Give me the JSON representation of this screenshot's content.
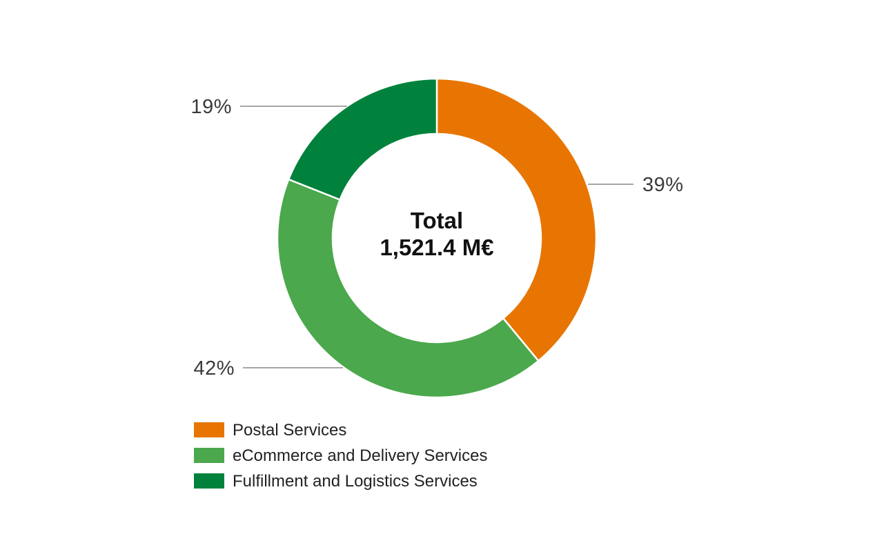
{
  "chart_data": {
    "type": "pie",
    "variant": "donut",
    "center_label": {
      "line1": "Total",
      "line2": "1,521.4 M€"
    },
    "slices": [
      {
        "name": "Postal Services",
        "value": 39,
        "label": "39%",
        "color": "#E87502"
      },
      {
        "name": "eCommerce and Delivery Services",
        "value": 42,
        "label": "42%",
        "color": "#4BA84C"
      },
      {
        "name": "Fulfillment and Logistics Services",
        "value": 19,
        "label": "19%",
        "color": "#00823C"
      }
    ],
    "legend_position": "bottom-left"
  }
}
